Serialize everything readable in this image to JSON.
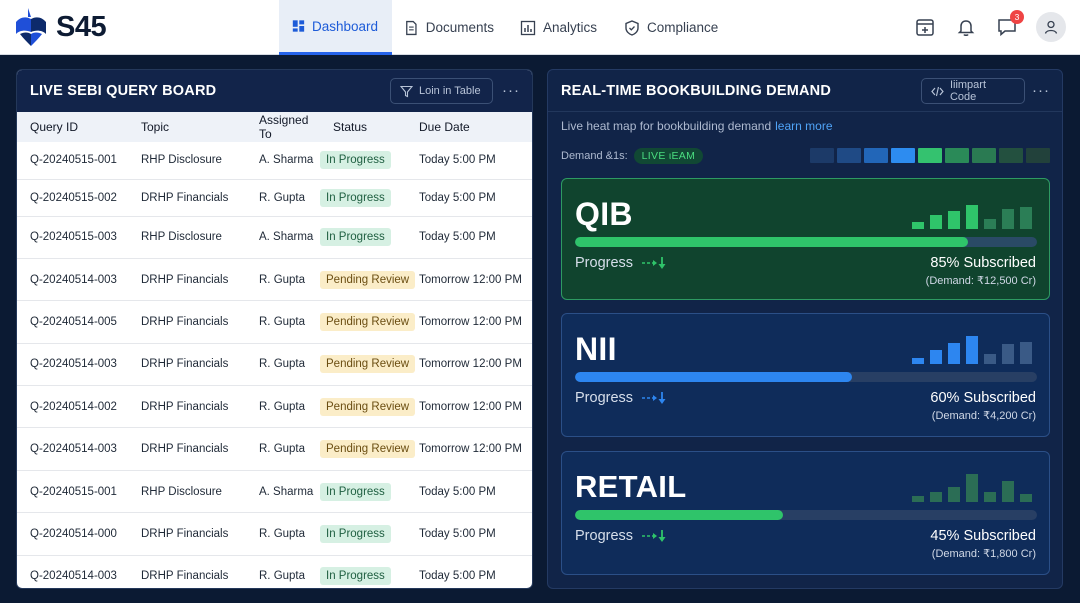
{
  "brand": {
    "name": "S45"
  },
  "nav": {
    "tabs": [
      {
        "label": "Dashboard",
        "icon": "dashboard-icon",
        "active": true
      },
      {
        "label": "Documents",
        "icon": "document-icon",
        "active": false
      },
      {
        "label": "Analytics",
        "icon": "analytics-icon",
        "active": false
      },
      {
        "label": "Compliance",
        "icon": "shield-icon",
        "active": false
      }
    ]
  },
  "topbar": {
    "messages_badge": "3"
  },
  "query_board": {
    "title": "LIVE SEBI QUERY BOARD",
    "button_label": "Loin in Table",
    "more_label": "···",
    "columns": [
      "Query ID",
      "Topic",
      "Assigned To",
      "Status",
      "Due Date"
    ],
    "rows": [
      {
        "id": "Q-20240515-001",
        "topic": "RHP Disclosure",
        "assigned": "A. Sharma",
        "status": "In Progress",
        "due": "Today 5:00 PM"
      },
      {
        "id": "Q-20240515-002",
        "topic": "DRHP Financials",
        "assigned": "R. Gupta",
        "status": "In Progress",
        "due": "Today 5:00 PM"
      },
      {
        "id": "Q-20240515-003",
        "topic": "RHP Disclosure",
        "assigned": "A. Sharma",
        "status": "In Progress",
        "due": "Today 5:00 PM"
      },
      {
        "id": "Q-20240514-003",
        "topic": "DRHP Financials",
        "assigned": "R. Gupta",
        "status": "Pending Review",
        "due": "Tomorrow 12:00 PM"
      },
      {
        "id": "Q-20240514-005",
        "topic": "DRHP Financials",
        "assigned": "R. Gupta",
        "status": "Pending Review",
        "due": "Tomorrow 12:00 PM"
      },
      {
        "id": "Q-20240514-003",
        "topic": "DRHP Financials",
        "assigned": "R. Gupta",
        "status": "Pending Review",
        "due": "Tomorrow 12:00 PM"
      },
      {
        "id": "Q-20240514-002",
        "topic": "DRHP Financials",
        "assigned": "R. Gupta",
        "status": "Pending Review",
        "due": "Tomorrow 12:00 PM"
      },
      {
        "id": "Q-20240514-003",
        "topic": "DRHP Financials",
        "assigned": "R. Gupta",
        "status": "Pending Review",
        "due": "Tomorrow 12:00 PM"
      },
      {
        "id": "Q-20240515-001",
        "topic": "RHP Disclosure",
        "assigned": "A. Sharma",
        "status": "In Progress",
        "due": "Today 5:00 PM"
      },
      {
        "id": "Q-20240514-000",
        "topic": "DRHP Financials",
        "assigned": "R. Gupta",
        "status": "In Progress",
        "due": "Today 5:00 PM"
      },
      {
        "id": "Q-20240514-003",
        "topic": "DRHP Financials",
        "assigned": "R. Gupta",
        "status": "In Progress",
        "due": "Today 5:00 PM"
      }
    ]
  },
  "demand_panel": {
    "title": "REAL-TIME BOOKBUILDING DEMAND",
    "button_label": "Iiimpart Code",
    "more_label": "···",
    "subtitle": "Live heat map for bookbuilding demand",
    "learn_more": "learn more",
    "legend_label": "Demand &1s:",
    "live_badge": "LIVE ιEAM",
    "heat_colors": [
      "#1c3a68",
      "#1f4a85",
      "#2266b8",
      "#2d8cf0",
      "#34c26f",
      "#2a8a58",
      "#2a7a52",
      "#23503f",
      "#22413b"
    ],
    "categories": [
      {
        "name": "QIB",
        "progress_label": "Progress",
        "subscribed_pct": 85,
        "subscribed_text": "85% Subscribed",
        "demand_text": "(Demand: ₹12,500 Cr)",
        "color": "#2fc46a",
        "bar_heights": [
          0.25,
          0.5,
          0.65,
          0.85,
          0.35,
          0.7,
          0.8
        ],
        "bar_colors": [
          "#2fc46a",
          "#2fc46a",
          "#2fc46a",
          "#2fc46a",
          "#2b7e56",
          "#2b7e56",
          "#2b7e56"
        ]
      },
      {
        "name": "NII",
        "progress_label": "Progress",
        "subscribed_pct": 60,
        "subscribed_text": "60% Subscribed",
        "demand_text": "(Demand: ₹4,200 Cr)",
        "color": "#2d86f0",
        "bar_heights": [
          0.2,
          0.5,
          0.75,
          1.0,
          0.35,
          0.7,
          0.8
        ],
        "bar_colors": [
          "#2d86f0",
          "#2d86f0",
          "#2d86f0",
          "#2d86f0",
          "#3a5a86",
          "#3a5a86",
          "#3a5a86"
        ]
      },
      {
        "name": "RETAIL",
        "progress_label": "Progress",
        "subscribed_pct": 45,
        "subscribed_text": "45% Subscribed",
        "demand_text": "(Demand: ₹1,800 Cr)",
        "color": "#2fc46a",
        "bar_heights": [
          0.2,
          0.35,
          0.55,
          1.0,
          0.35,
          0.75,
          0.3
        ],
        "bar_colors": [
          "#2b6d55",
          "#2b6d55",
          "#2b6d55",
          "#2b6d55",
          "#2b6d55",
          "#2b6d55",
          "#2b6d55"
        ]
      }
    ]
  }
}
